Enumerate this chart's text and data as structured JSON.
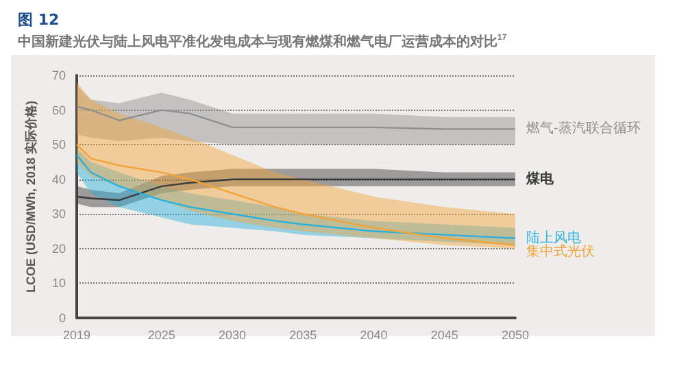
{
  "chart_data": {
    "type": "line",
    "title": "图 12",
    "subtitle": "中国新建光伏与陆上风电平准化发电成本与现有燃煤和燃气电厂运营成本的对比$^{17}$",
    "ylabel": "LCOE (USD/MWh, 2018 实际价格)",
    "xlim": [
      2019,
      2050
    ],
    "xticks": [
      2019,
      2025,
      2030,
      2035,
      2040,
      2045,
      2050
    ],
    "ylim": [
      0,
      70
    ],
    "yticks": [
      0,
      10,
      20,
      30,
      40,
      50,
      60,
      70
    ],
    "grid": "y",
    "legend": false,
    "marker": "none",
    "line_style": "solid",
    "x": [
      2019,
      2020,
      2022,
      2025,
      2027,
      2030,
      2033,
      2035,
      2040,
      2045,
      2050
    ],
    "series": [
      {
        "name": "燃气-蒸汽联合循环",
        "color": "#8f8f8f",
        "values": [
          61,
          60,
          57,
          60,
          59,
          55,
          55,
          55,
          55,
          54.5,
          54.5
        ],
        "lower": [
          53,
          52,
          51,
          52,
          51,
          50,
          50,
          50,
          50,
          50,
          50
        ],
        "upper": [
          67,
          63,
          62,
          65,
          63,
          59,
          59,
          59,
          59,
          58,
          58
        ]
      },
      {
        "name": "煤电",
        "color": "#3a3a3a",
        "values": [
          35,
          34.5,
          34,
          38,
          39,
          40,
          40,
          40,
          40,
          40,
          40
        ],
        "lower": [
          33,
          32,
          32,
          36,
          37,
          38,
          38,
          38,
          38,
          38,
          38
        ],
        "upper": [
          38,
          37,
          36,
          41,
          42,
          43,
          43,
          43,
          43,
          42,
          42
        ]
      },
      {
        "name": "陆上风电",
        "color": "#29b0de",
        "values": [
          47,
          42,
          38,
          34,
          32,
          30,
          28,
          27,
          25,
          24,
          23
        ],
        "lower": [
          42,
          36,
          32,
          29,
          27,
          26,
          25,
          24,
          23,
          22,
          21
        ],
        "upper": [
          49,
          45,
          42,
          38,
          36,
          34,
          32,
          30,
          28,
          27,
          26
        ]
      },
      {
        "name": "集中式光伏",
        "color": "#f2a33a",
        "values": [
          50,
          46,
          44,
          42,
          40,
          36,
          32,
          30,
          26,
          23,
          21
        ],
        "lower": [
          45,
          41,
          38,
          34,
          31,
          28,
          26,
          25,
          23,
          21,
          20
        ],
        "upper": [
          68,
          63,
          59,
          55,
          52,
          47,
          42,
          40,
          35,
          32,
          30
        ]
      }
    ]
  }
}
